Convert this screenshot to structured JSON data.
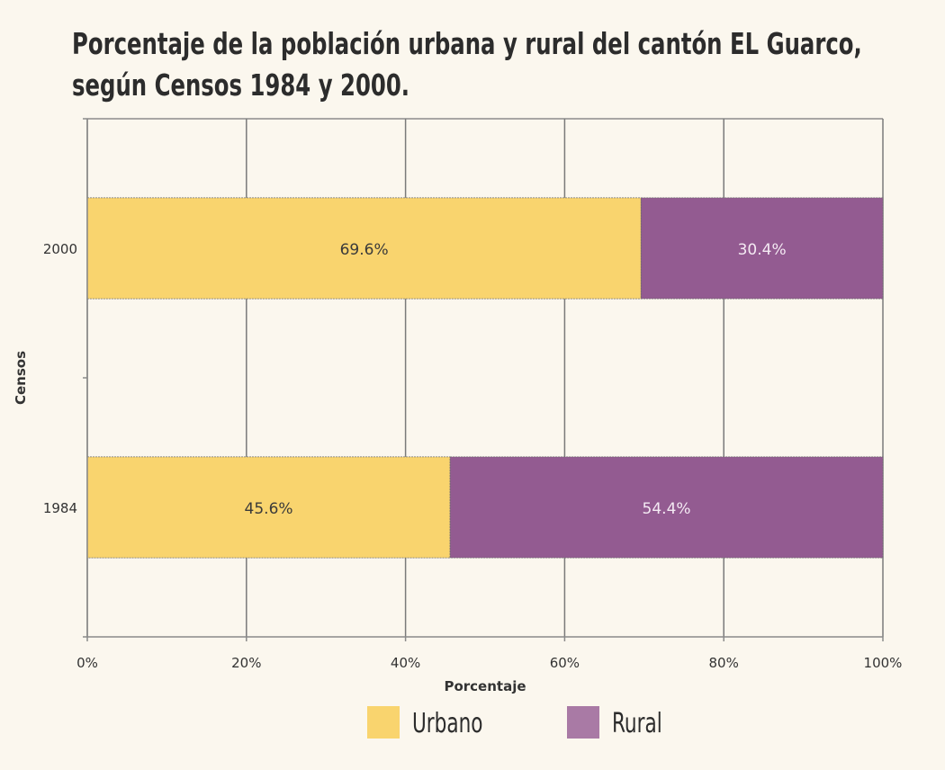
{
  "chart_data": {
    "type": "bar",
    "orientation": "horizontal",
    "stacked": true,
    "title_lines": [
      "Porcentaje de la población urbana y rural del cantón EL Guarco,",
      "según Censos 1984 y 2000."
    ],
    "title": "Porcentaje de la población urbana y rural del cantón EL Guarco, según Censos 1984 y 2000.",
    "xlabel": "Porcentaje",
    "ylabel": "Censos",
    "xlim": [
      0,
      100
    ],
    "xticks": [
      0,
      20,
      40,
      60,
      80,
      100
    ],
    "xtick_labels": [
      "0%",
      "20%",
      "40%",
      "60%",
      "80%",
      "100%"
    ],
    "categories": [
      "2000",
      "1984"
    ],
    "series": [
      {
        "name": "Urbano",
        "color": "#f9d46e",
        "values": [
          69.6,
          45.6
        ],
        "labels": [
          "69.6%",
          "45.6%"
        ]
      },
      {
        "name": "Rural",
        "color": "#935b91",
        "values": [
          30.4,
          54.4
        ],
        "labels": [
          "30.4%",
          "54.4%"
        ]
      }
    ],
    "grid": true,
    "legend": "bottom",
    "colors": {
      "urbano": "#f9d46e",
      "rural": "#935b91",
      "rural_legend": "#a97aa5"
    }
  }
}
